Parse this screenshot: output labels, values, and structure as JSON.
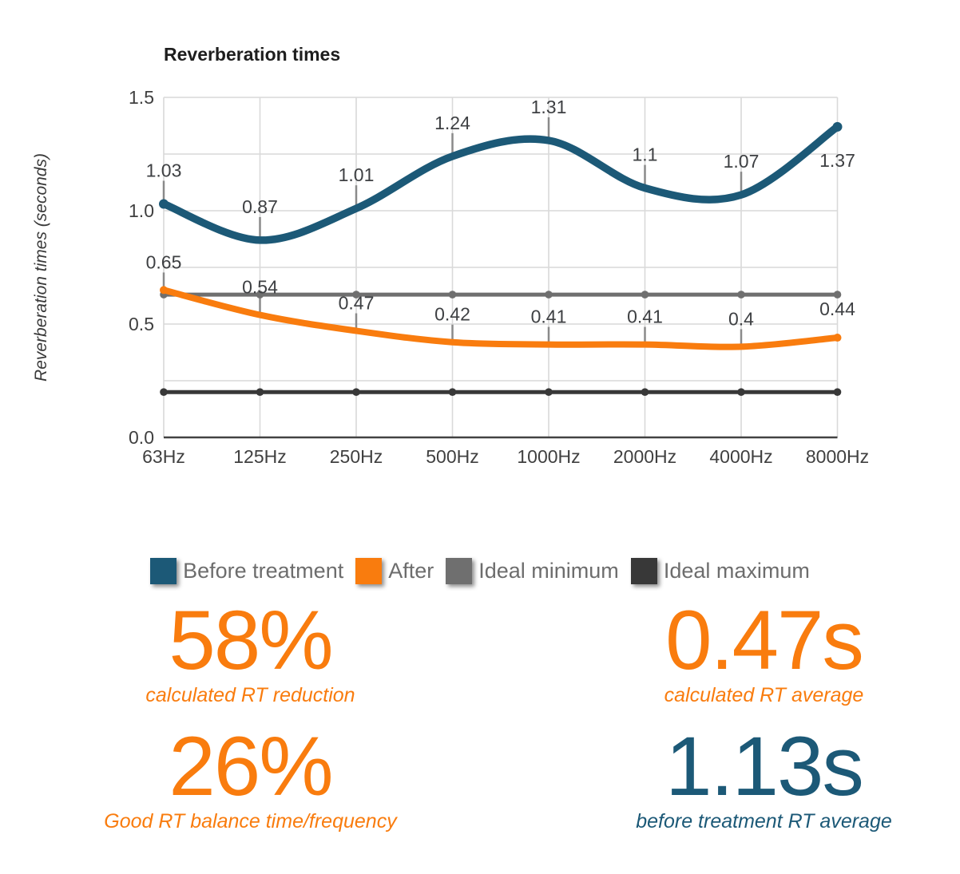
{
  "page": {
    "background": "#ffffff"
  },
  "chart_data": {
    "type": "line",
    "title": "Reverberation times",
    "xlabel": "",
    "ylabel": "Reverberation times (seconds)",
    "categories": [
      "63Hz",
      "125Hz",
      "250Hz",
      "500Hz",
      "1000Hz",
      "2000Hz",
      "4000Hz",
      "8000Hz"
    ],
    "ylim": [
      0,
      1.5
    ],
    "y_tick_labels": [
      "0.0",
      "0.5",
      "1.0",
      "1.5"
    ],
    "minor_grid_step": 0.25,
    "grid": true,
    "legend_position": "bottom",
    "series": [
      {
        "name": "Before treatment",
        "color": "#1c5977",
        "style": "smooth",
        "show_point_labels": true,
        "values": [
          1.03,
          0.87,
          1.01,
          1.24,
          1.31,
          1.1,
          1.07,
          1.37
        ],
        "point_labels": [
          "1.03",
          "0.87",
          "1.01",
          "1.24",
          "1.31",
          "1.1",
          "1.07",
          "1.37"
        ]
      },
      {
        "name": "After",
        "color": "#f97c0e",
        "style": "smooth",
        "show_point_labels": true,
        "values": [
          0.65,
          0.54,
          0.47,
          0.42,
          0.41,
          0.41,
          0.4,
          0.44
        ],
        "point_labels": [
          "0.65",
          "0.54",
          "0.47",
          "0.42",
          "0.41",
          "0.41",
          "0.4",
          "0.44"
        ]
      },
      {
        "name": "Ideal minimum",
        "color": "#6f6f6f",
        "style": "flat-markers",
        "show_point_labels": false,
        "values": [
          0.63,
          0.63,
          0.63,
          0.63,
          0.63,
          0.63,
          0.63,
          0.63
        ]
      },
      {
        "name": "Ideal maximum",
        "color": "#383838",
        "style": "flat-markers",
        "show_point_labels": false,
        "values": [
          0.2,
          0.2,
          0.2,
          0.2,
          0.2,
          0.2,
          0.2,
          0.2
        ]
      }
    ]
  },
  "colors": {
    "grid": "#d9d9d9",
    "axis": "#424242",
    "tick_text": "#404040",
    "data_label": "#3e4043",
    "leader_stub": "#8a8a8a",
    "title_text": "#1e1e1e",
    "axis_title_text": "#3a3a3a"
  },
  "stats": [
    {
      "value": "58%",
      "caption": "calculated RT reduction",
      "color": "#f97c0e"
    },
    {
      "value": "0.47s",
      "caption": "calculated RT average",
      "color": "#f97c0e"
    },
    {
      "value": "26%",
      "caption": "Good RT balance time/frequency",
      "color": "#f97c0e"
    },
    {
      "value": "1.13s",
      "caption": "before treatment RT average",
      "color": "#1c5977"
    }
  ]
}
